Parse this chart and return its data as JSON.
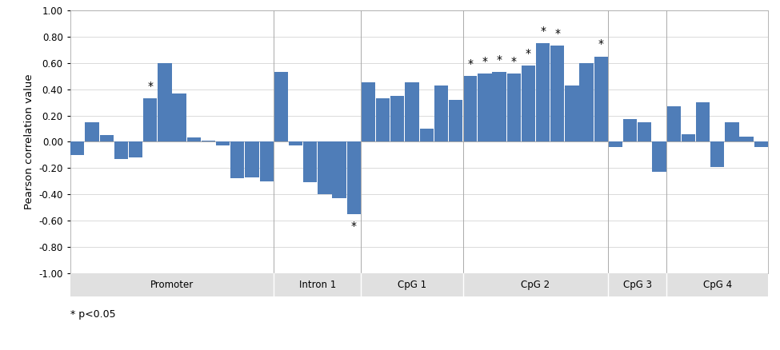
{
  "bar_color": "#4f7db8",
  "ylabel": "Pearson correlation value",
  "ylim": [
    -1.0,
    1.0
  ],
  "yticks": [
    -1.0,
    -0.8,
    -0.6,
    -0.4,
    -0.2,
    0.0,
    0.2,
    0.4,
    0.6,
    0.8,
    1.0
  ],
  "sections": [
    {
      "name": "Promoter",
      "n_bars": 14
    },
    {
      "name": "Intron 1",
      "n_bars": 6
    },
    {
      "name": "CpG 1",
      "n_bars": 7
    },
    {
      "name": "CpG 2",
      "n_bars": 10
    },
    {
      "name": "CpG 3",
      "n_bars": 4
    },
    {
      "name": "CpG 4",
      "n_bars": 7
    }
  ],
  "values": [
    -0.1,
    0.15,
    0.05,
    -0.13,
    -0.12,
    0.33,
    0.6,
    0.37,
    0.03,
    0.01,
    -0.03,
    -0.28,
    -0.27,
    -0.3,
    0.53,
    -0.03,
    -0.31,
    -0.4,
    -0.43,
    -0.55,
    0.45,
    0.33,
    0.35,
    0.45,
    0.1,
    0.43,
    0.32,
    0.5,
    0.52,
    0.53,
    0.52,
    0.58,
    0.75,
    0.73,
    0.43,
    0.6,
    0.65,
    -0.04,
    0.17,
    0.15,
    -0.23,
    0.27,
    0.06,
    0.3,
    -0.19,
    0.15,
    0.04,
    -0.04
  ],
  "significant": [
    false,
    false,
    false,
    false,
    false,
    true,
    false,
    false,
    false,
    false,
    false,
    false,
    false,
    false,
    false,
    false,
    false,
    false,
    false,
    true,
    false,
    false,
    false,
    false,
    false,
    false,
    false,
    true,
    true,
    true,
    true,
    true,
    true,
    true,
    false,
    false,
    true,
    false,
    false,
    false,
    false,
    false,
    false,
    false,
    false,
    false,
    false,
    false
  ],
  "section_bg_color": "#e0e0e0",
  "grid_color": "#cccccc",
  "spine_color": "#aaaaaa",
  "annotation": "* p<0.05",
  "annotation_fontsize": 9
}
